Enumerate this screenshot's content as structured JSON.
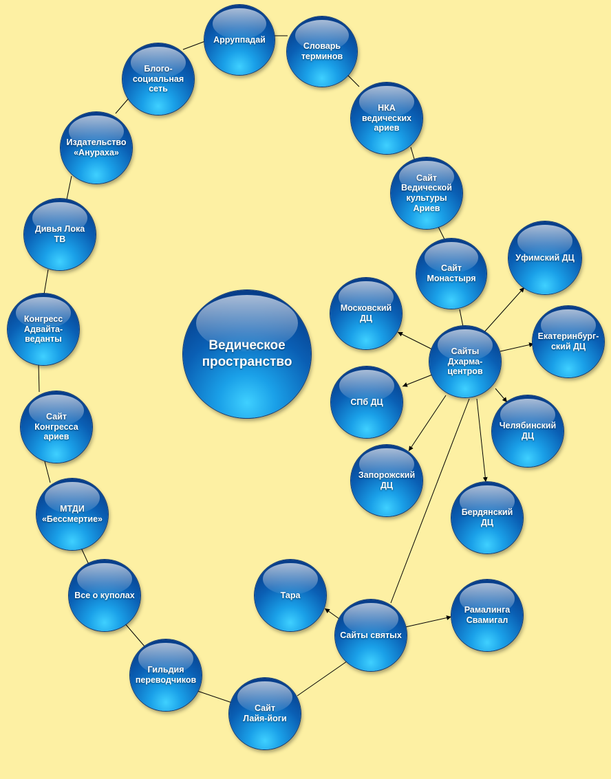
{
  "center_label": "Ведическое\nпространство",
  "nodes": {
    "arruppadai": "Арруппадай",
    "slovar": "Словарь\nтерминов",
    "nka": "НКА\nведических\nариев",
    "vedic_culture": "Сайт\nВедической\nкультуры\nАриев",
    "monastery": "Сайт\nМонастыря",
    "ufa": "Уфимский ДЦ",
    "dharma": "Сайты\nДхарма-\nцентров",
    "moscow": "Московский\nДЦ",
    "ekb": "Екатеринбург-\nский ДЦ",
    "spb": "СПб ДЦ",
    "chelyabinsk": "Челябинский\nДЦ",
    "zaporozhye": "Запорожский\nДЦ",
    "berdyansk": "Бердянский\nДЦ",
    "tara": "Тара",
    "saints": "Сайты святых",
    "ramalinga": "Рамалинга\nСвамигал",
    "laya_yoga": "Сайт\nЛайя-йоги",
    "guild": "Гильдия\nпереводчиков",
    "domes": "Все о куполах",
    "mtdi": "МТДИ\n«Бессмертие»",
    "congress_site": "Сайт\nКонгресса\nариев",
    "congress_advaita": "Конгресс\nАдвайта-\nведанты",
    "divya_loka": "Дивья Лока\nТВ",
    "anugraha": "Издательство\n«Анураха»",
    "blog": "Блого-\nсоциальная\nсеть"
  }
}
